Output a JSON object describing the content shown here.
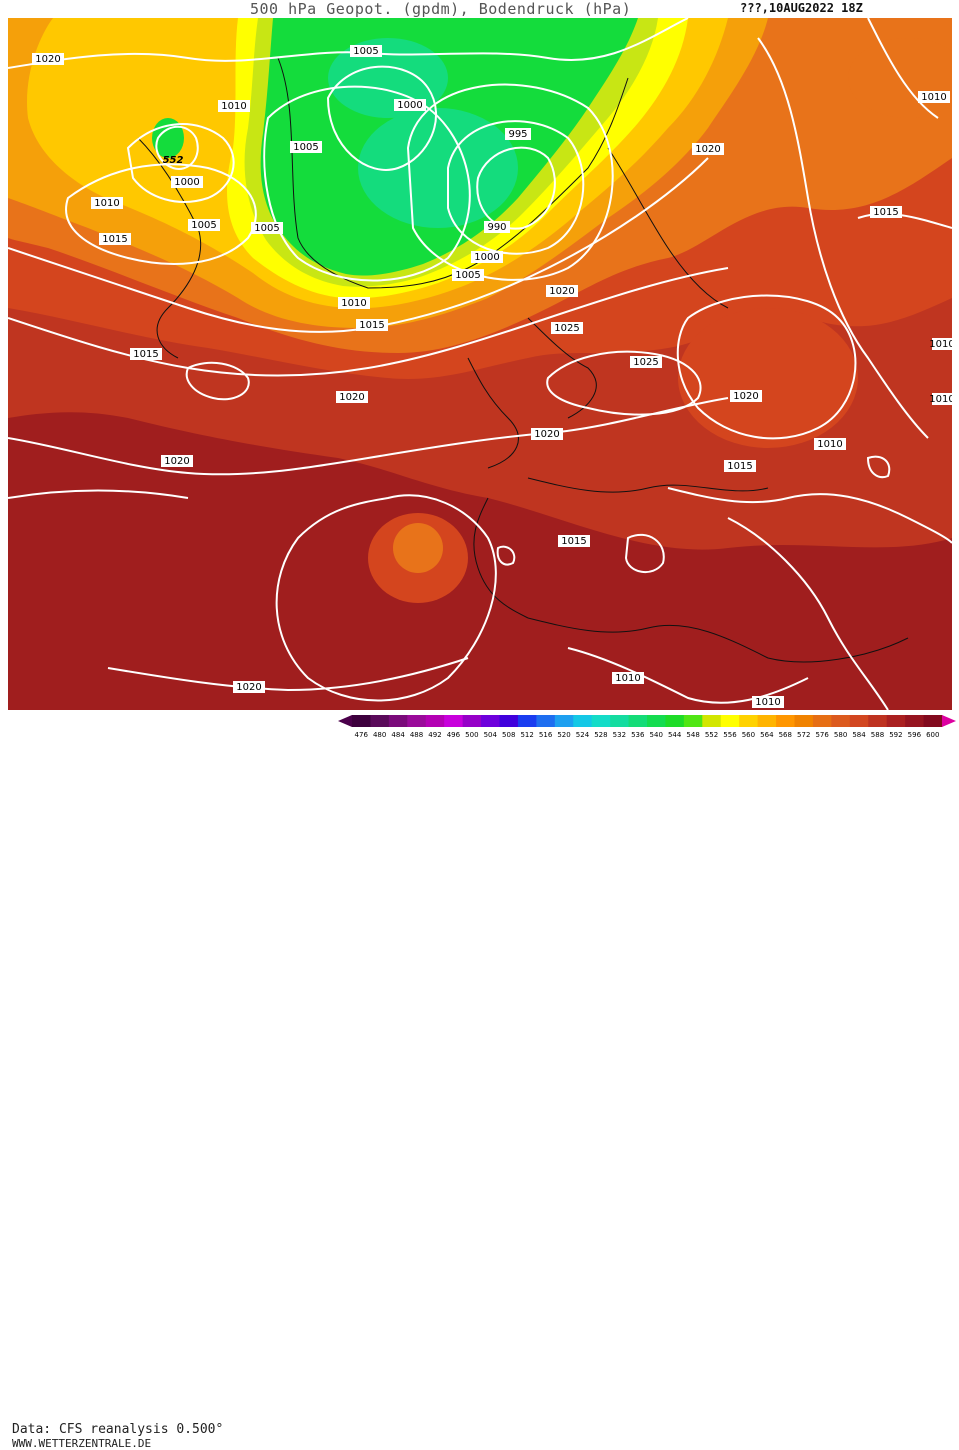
{
  "header": {
    "title": "500 hPa Geopot. (gpdm), Bodendruck (hPa)",
    "run_date": "???,10AUG2022 18Z"
  },
  "footer": {
    "data_source": "Data: CFS reanalysis 0.500°",
    "website": "WWW.WETTERZENTRALE.DE"
  },
  "legend": {
    "values": [
      "476",
      "480",
      "484",
      "488",
      "492",
      "496",
      "500",
      "504",
      "508",
      "512",
      "516",
      "520",
      "524",
      "528",
      "532",
      "536",
      "540",
      "544",
      "548",
      "552",
      "556",
      "560",
      "564",
      "568",
      "572",
      "576",
      "580",
      "584",
      "588",
      "592",
      "596",
      "600"
    ],
    "colors": [
      "#3d003d",
      "#5a0a5a",
      "#7a0a7a",
      "#9a0a9a",
      "#b400b4",
      "#c800dc",
      "#9600c8",
      "#6e00dc",
      "#4000dc",
      "#1a3cf0",
      "#1e6ef0",
      "#1ea0f0",
      "#14c8e6",
      "#14dcc8",
      "#14dca0",
      "#14dc78",
      "#14dc50",
      "#1edc28",
      "#50e614",
      "#d2e600",
      "#ffff00",
      "#ffd200",
      "#ffb400",
      "#ff9600",
      "#f08200",
      "#e66e14",
      "#dc5a1e",
      "#d24620",
      "#be3220",
      "#aa2020",
      "#961420",
      "#820a1e"
    ],
    "arrow_left_color": "#4b004b",
    "arrow_right_color": "#dc00a0"
  },
  "map": {
    "fill_colors": {
      "dark_red": "#a01e1e",
      "red": "#bf3520",
      "red_orange": "#d4451e",
      "orange": "#e8731a",
      "light_orange": "#f5a00a",
      "yellow_orange": "#ffc800",
      "yellow": "#ffff00",
      "green_yellow": "#c8e614",
      "green": "#14dc3c",
      "teal_green": "#14dc7d"
    },
    "geopotential_label": "552",
    "isobar_labels": [
      {
        "text": "1020"
      },
      {
        "text": "1005"
      },
      {
        "text": "1010"
      },
      {
        "text": "1000"
      },
      {
        "text": "995"
      },
      {
        "text": "1005"
      },
      {
        "text": "552"
      },
      {
        "text": "1000"
      },
      {
        "text": "1010"
      },
      {
        "text": "1005"
      },
      {
        "text": "1015"
      },
      {
        "text": "1005"
      },
      {
        "text": "990"
      },
      {
        "text": "1000"
      },
      {
        "text": "1005"
      },
      {
        "text": "1010"
      },
      {
        "text": "1015"
      },
      {
        "text": "1015"
      },
      {
        "text": "1020"
      },
      {
        "text": "1025"
      },
      {
        "text": "1025"
      },
      {
        "text": "1020"
      },
      {
        "text": "1020"
      },
      {
        "text": "1020"
      },
      {
        "text": "1015"
      },
      {
        "text": "1010"
      },
      {
        "text": "1015"
      },
      {
        "text": "1020"
      },
      {
        "text": "1015"
      },
      {
        "text": "1010"
      },
      {
        "text": "1010"
      },
      {
        "text": "1010"
      },
      {
        "text": "1020"
      },
      {
        "text": "1010"
      },
      {
        "text": "1010"
      }
    ]
  }
}
